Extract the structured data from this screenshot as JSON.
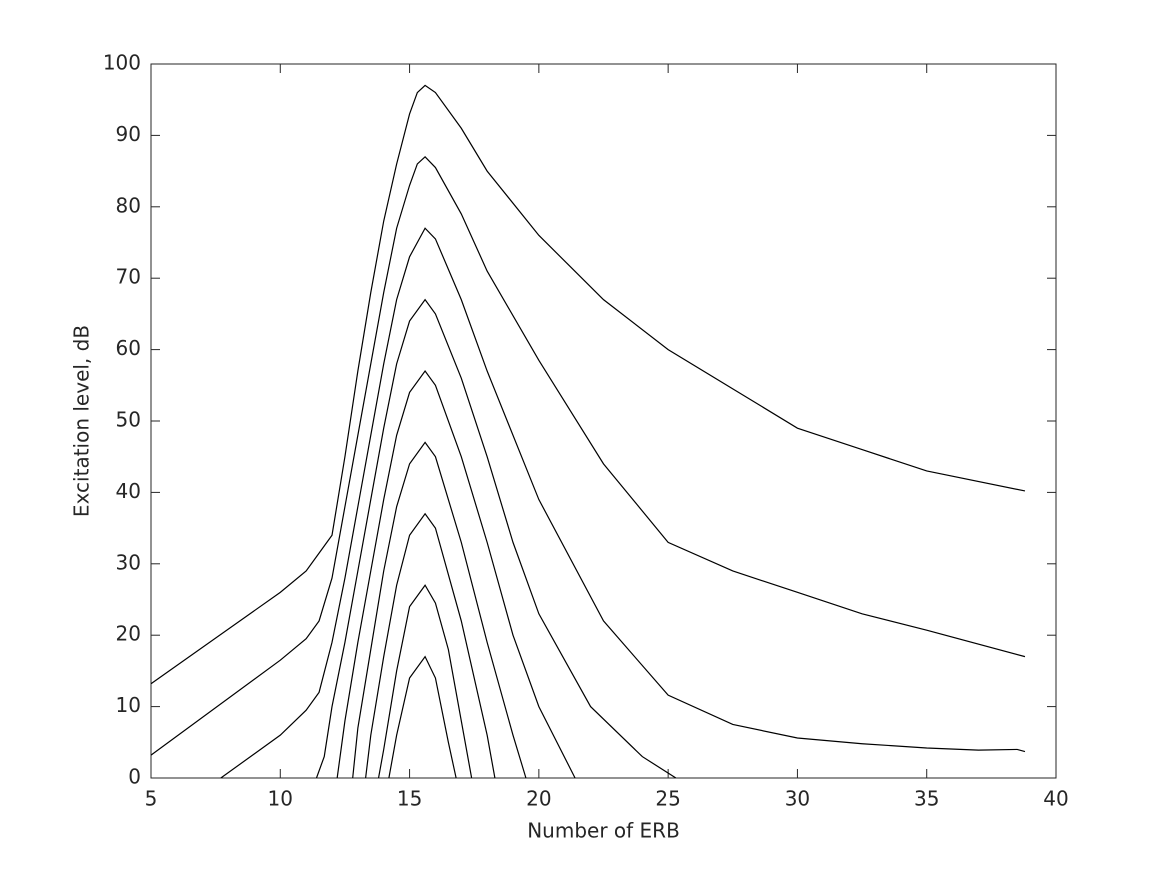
{
  "chart_data": {
    "type": "line",
    "xlabel": "Number of ERB",
    "ylabel": "Excitation level, dB",
    "xlim": [
      5,
      40
    ],
    "xticks": [
      5,
      10,
      15,
      20,
      25,
      30,
      35,
      40
    ],
    "ylim": [
      0,
      100
    ],
    "yticks": [
      0,
      10,
      20,
      30,
      40,
      50,
      60,
      70,
      80,
      90,
      100
    ],
    "grid": false,
    "series": [
      {
        "color": "#000000",
        "x": [
          5,
          10,
          11,
          11.5,
          12,
          12.5,
          13,
          13.5,
          14,
          14.5,
          15,
          15.3,
          15.6,
          16,
          17,
          18,
          20,
          22.5,
          25,
          27.5,
          30,
          32.5,
          35,
          38.8
        ],
        "values": [
          13.2,
          26,
          29,
          31.5,
          34,
          45,
          57,
          68,
          78,
          86,
          93,
          96,
          97,
          96,
          91,
          85,
          76,
          67,
          60,
          54.5,
          49,
          46,
          43,
          40.2
        ]
      },
      {
        "color": "#000000",
        "x": [
          5,
          10,
          11,
          11.5,
          12,
          12.5,
          13,
          13.5,
          14,
          14.5,
          15,
          15.3,
          15.6,
          16,
          17,
          18,
          20,
          22.5,
          25,
          27.5,
          30,
          32.5,
          35,
          38.8
        ],
        "values": [
          3.2,
          16.5,
          19.5,
          22,
          28,
          38,
          48,
          58,
          68,
          77,
          83,
          86,
          87,
          85.5,
          79,
          71,
          58.5,
          44,
          33,
          29,
          26,
          23,
          20.7,
          17
        ]
      },
      {
        "color": "#000000",
        "x": [
          7.7,
          10,
          11,
          11.5,
          12,
          12.5,
          13,
          13.5,
          14,
          14.5,
          15,
          15.6,
          16,
          17,
          18,
          20,
          22.5,
          25,
          27.5,
          30,
          32.5,
          35,
          37,
          38.5,
          38.8
        ],
        "values": [
          0,
          6,
          9.5,
          12,
          19,
          28,
          38,
          48,
          58,
          67,
          73,
          77,
          75.5,
          67,
          57,
          39,
          22,
          11.6,
          7.5,
          5.6,
          4.8,
          4.2,
          3.9,
          4,
          3.7
        ]
      },
      {
        "color": "#000000",
        "x": [
          11.4,
          11.7,
          12,
          12.5,
          13,
          13.5,
          14,
          14.5,
          15,
          15.6,
          16,
          17,
          18,
          19,
          20,
          22,
          24,
          25.3
        ],
        "values": [
          0,
          3,
          10,
          19,
          29,
          39,
          49,
          58,
          64,
          67,
          65,
          56,
          45,
          33,
          23,
          10,
          3,
          0
        ]
      },
      {
        "color": "#000000",
        "x": [
          12.2,
          12.5,
          13,
          13.5,
          14,
          14.5,
          15,
          15.6,
          16,
          17,
          18,
          19,
          20,
          21.4
        ],
        "values": [
          0,
          8,
          19,
          29,
          39,
          48,
          54,
          57,
          55,
          45,
          33,
          20,
          10,
          0
        ]
      },
      {
        "color": "#000000",
        "x": [
          12.8,
          13,
          13.5,
          14,
          14.5,
          15,
          15.6,
          16,
          17,
          18,
          19,
          19.5
        ],
        "values": [
          0,
          7,
          18,
          29,
          38,
          44,
          47,
          45,
          33,
          19,
          6,
          0
        ]
      },
      {
        "color": "#000000",
        "x": [
          13.3,
          13.5,
          14,
          14.5,
          15,
          15.6,
          16,
          17,
          18,
          18.3
        ],
        "values": [
          0,
          6,
          17,
          27,
          34,
          37,
          35,
          22,
          6,
          0
        ]
      },
      {
        "color": "#000000",
        "x": [
          13.8,
          14,
          14.5,
          15,
          15.6,
          16,
          16.5,
          17,
          17.4
        ],
        "values": [
          0,
          4,
          15,
          24,
          27,
          24.5,
          18,
          8,
          0
        ]
      },
      {
        "color": "#000000",
        "x": [
          14.2,
          14.5,
          15,
          15.6,
          16,
          16.5,
          16.8
        ],
        "values": [
          0,
          6,
          14,
          17,
          14,
          5,
          0
        ]
      }
    ]
  }
}
